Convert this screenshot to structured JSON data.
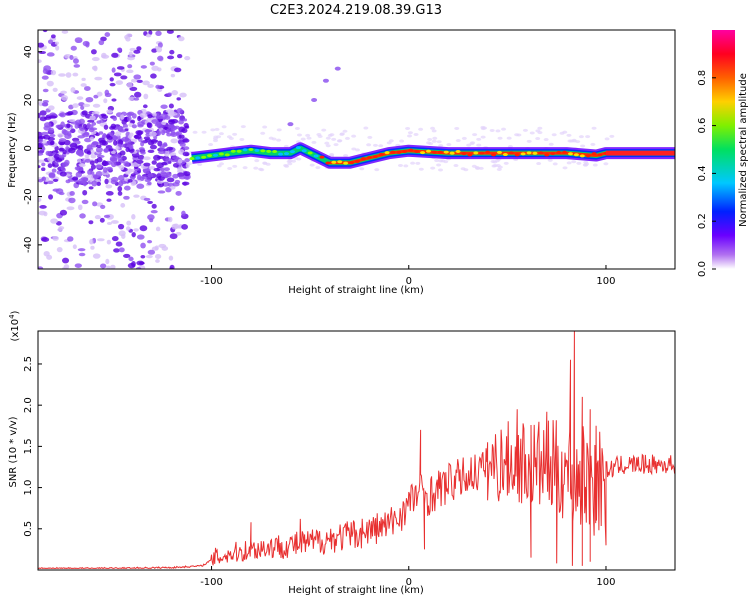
{
  "figure_title": "C2E3.2024.219.08.39.G13",
  "chart_data": [
    {
      "type": "heatmap",
      "title": "C2E3.2024.219.08.39.G13",
      "xlabel": "Height of straight line (km)",
      "ylabel": "Frequency (Hz)",
      "xlim": [
        -188,
        135
      ],
      "ylim": [
        -50,
        49
      ],
      "x_ticks": [
        -100,
        0,
        100
      ],
      "x_tick_labels": [
        "-100",
        "0",
        "100"
      ],
      "y_ticks": [
        -40,
        -20,
        0,
        20,
        40
      ],
      "y_tick_labels": [
        "-40",
        "-20",
        "0",
        "20",
        "40"
      ],
      "colorbar": {
        "label": "Normalized spectral amplitude",
        "range": [
          0,
          1
        ],
        "ticks": [
          0.0,
          0.2,
          0.4,
          0.6,
          0.8
        ],
        "tick_labels": [
          "0.0",
          "0.2",
          "0.4",
          "0.6",
          "0.8"
        ],
        "colormap": "rainbow (white-violet-blue-cyan-green-yellow-orange-red-magenta)"
      },
      "ridge": [
        {
          "x": -110,
          "f": -4
        },
        {
          "x": -100,
          "f": -3
        },
        {
          "x": -90,
          "f": -2
        },
        {
          "x": -80,
          "f": -1
        },
        {
          "x": -70,
          "f": -2
        },
        {
          "x": -60,
          "f": -2
        },
        {
          "x": -55,
          "f": 0
        },
        {
          "x": -50,
          "f": -2
        },
        {
          "x": -40,
          "f": -6
        },
        {
          "x": -30,
          "f": -6
        },
        {
          "x": -20,
          "f": -4
        },
        {
          "x": -10,
          "f": -2
        },
        {
          "x": 0,
          "f": -1
        },
        {
          "x": 20,
          "f": -2
        },
        {
          "x": 40,
          "f": -2
        },
        {
          "x": 60,
          "f": -2
        },
        {
          "x": 80,
          "f": -2
        },
        {
          "x": 95,
          "f": -3
        },
        {
          "x": 100,
          "f": -2
        },
        {
          "x": 135,
          "f": -2
        }
      ],
      "noise_region": {
        "x_range": [
          -188,
          -112
        ],
        "f_range": [
          -50,
          49
        ]
      },
      "faint_branch": [
        {
          "x": -60,
          "f": 10
        },
        {
          "x": -48,
          "f": 20
        },
        {
          "x": -42,
          "f": 28
        },
        {
          "x": -36,
          "f": 33
        }
      ]
    },
    {
      "type": "line",
      "xlabel": "Height of straight line (km)",
      "ylabel": "SNR (10 * v/v)",
      "y_multiplier": "(x10^4)",
      "y_multiplier_base": "(x10",
      "y_multiplier_exp": "4",
      "y_multiplier_close": ")",
      "xlim": [
        -188,
        135
      ],
      "ylim": [
        0,
        2.9
      ],
      "x_ticks": [
        -100,
        0,
        100
      ],
      "x_tick_labels": [
        "-100",
        "0",
        "100"
      ],
      "y_ticks": [
        0.5,
        1.0,
        1.5,
        2.0,
        2.5
      ],
      "y_tick_labels": [
        "0.5",
        "1.0",
        "1.5",
        "2.0",
        "2.5"
      ],
      "series": [
        {
          "color": "#e83030",
          "points": [
            [
              -188,
              0.02
            ],
            [
              -150,
              0.02
            ],
            [
              -120,
              0.03
            ],
            [
              -105,
              0.05
            ],
            [
              -98,
              0.15
            ],
            [
              -90,
              0.2
            ],
            [
              -80,
              0.25
            ],
            [
              -70,
              0.28
            ],
            [
              -60,
              0.3
            ],
            [
              -50,
              0.33
            ],
            [
              -40,
              0.38
            ],
            [
              -30,
              0.42
            ],
            [
              -20,
              0.48
            ],
            [
              -10,
              0.55
            ],
            [
              -5,
              0.65
            ],
            [
              0,
              0.8
            ],
            [
              5,
              0.95
            ],
            [
              10,
              0.9
            ],
            [
              20,
              1.05
            ],
            [
              30,
              1.15
            ],
            [
              40,
              1.25
            ],
            [
              50,
              1.32
            ],
            [
              60,
              1.3
            ],
            [
              70,
              1.25
            ],
            [
              80,
              1.2
            ],
            [
              85,
              1.1
            ],
            [
              90,
              1.1
            ],
            [
              95,
              1.05
            ],
            [
              100,
              1.2
            ],
            [
              105,
              1.25
            ],
            [
              110,
              1.28
            ],
            [
              120,
              1.28
            ],
            [
              135,
              1.28
            ]
          ],
          "spikes": [
            {
              "x": -80,
              "y": 0.58
            },
            {
              "x": -55,
              "y": 0.62
            },
            {
              "x": 6,
              "y": 1.7
            },
            {
              "x": 40,
              "y": 1.55
            },
            {
              "x": 55,
              "y": 1.95
            },
            {
              "x": 70,
              "y": 1.92
            },
            {
              "x": 82,
              "y": 2.55
            },
            {
              "x": 84,
              "y": 2.9
            },
            {
              "x": 88,
              "y": 2.1
            },
            {
              "x": 92,
              "y": 1.95
            },
            {
              "x": 95,
              "y": 1.75
            }
          ],
          "dips": [
            {
              "x": 8,
              "y": 0.25
            },
            {
              "x": 62,
              "y": 0.15
            },
            {
              "x": 75,
              "y": 0.08
            },
            {
              "x": 83,
              "y": 0.05
            },
            {
              "x": 88,
              "y": 0.05
            },
            {
              "x": 92,
              "y": 0.1
            },
            {
              "x": 100,
              "y": 0.3
            }
          ]
        }
      ]
    }
  ]
}
